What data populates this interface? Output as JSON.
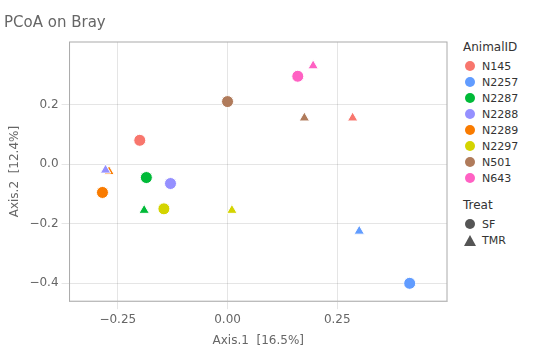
{
  "chart_data": {
    "type": "scatter",
    "title": "PCoA on Bray",
    "xlabel": "Axis.1  [16.5%]",
    "ylabel": "Axis.2  [12.4%]",
    "xlim": [
      -0.36,
      0.5
    ],
    "ylim": [
      -0.46,
      0.41
    ],
    "xticks": [
      {
        "value": -0.25,
        "label": "−0.25"
      },
      {
        "value": 0.0,
        "label": "0.00"
      },
      {
        "value": 0.25,
        "label": "0.25"
      }
    ],
    "yticks": [
      {
        "value": -0.4,
        "label": "−0.4"
      },
      {
        "value": -0.2,
        "label": "−0.2"
      },
      {
        "value": 0.0,
        "label": "0.0"
      },
      {
        "value": 0.2,
        "label": "0.2"
      }
    ],
    "grid": true,
    "legend": "right",
    "legend_title": "AnimalID",
    "series": [
      {
        "name": "N145",
        "color": "#F8766D",
        "x": [
          -0.2,
          0.285
        ],
        "y": [
          0.08,
          0.155
        ],
        "groups": [
          "SF",
          "TMR"
        ]
      },
      {
        "name": "N2257",
        "color": "#619CFF",
        "x": [
          0.415,
          0.3
        ],
        "y": [
          -0.4,
          -0.225
        ],
        "groups": [
          "SF",
          "TMR"
        ]
      },
      {
        "name": "N2287",
        "color": "#00BA38",
        "x": [
          -0.185,
          -0.19
        ],
        "y": [
          -0.045,
          -0.155
        ],
        "groups": [
          "SF",
          "TMR"
        ]
      },
      {
        "name": "N2288",
        "color": "#9590FF",
        "x": [
          -0.13,
          -0.278
        ],
        "y": [
          -0.065,
          -0.02
        ],
        "groups": [
          "SF",
          "TMR"
        ]
      },
      {
        "name": "N2289",
        "color": "#F97B00",
        "x": [
          -0.285,
          -0.27
        ],
        "y": [
          -0.095,
          -0.025
        ],
        "groups": [
          "SF",
          "TMR"
        ]
      },
      {
        "name": "N2297",
        "color": "#D4D400",
        "x": [
          -0.145,
          0.01
        ],
        "y": [
          -0.15,
          -0.155
        ],
        "groups": [
          "SF",
          "TMR"
        ]
      },
      {
        "name": "N501",
        "color": "#B07B5B",
        "x": [
          0.0,
          0.175
        ],
        "y": [
          0.21,
          0.155
        ],
        "groups": [
          "SF",
          "TMR"
        ]
      },
      {
        "name": "N643",
        "color": "#FF61C3",
        "x": [
          0.16,
          0.195
        ],
        "y": [
          0.295,
          0.33
        ],
        "groups": [
          "SF",
          "TMR"
        ]
      }
    ],
    "group_legend": {
      "title": "Treat",
      "entries": [
        {
          "name": "SF",
          "marker": "circle",
          "color": "#555555"
        },
        {
          "name": "TMR",
          "marker": "triangle",
          "color": "#555555"
        }
      ]
    }
  }
}
